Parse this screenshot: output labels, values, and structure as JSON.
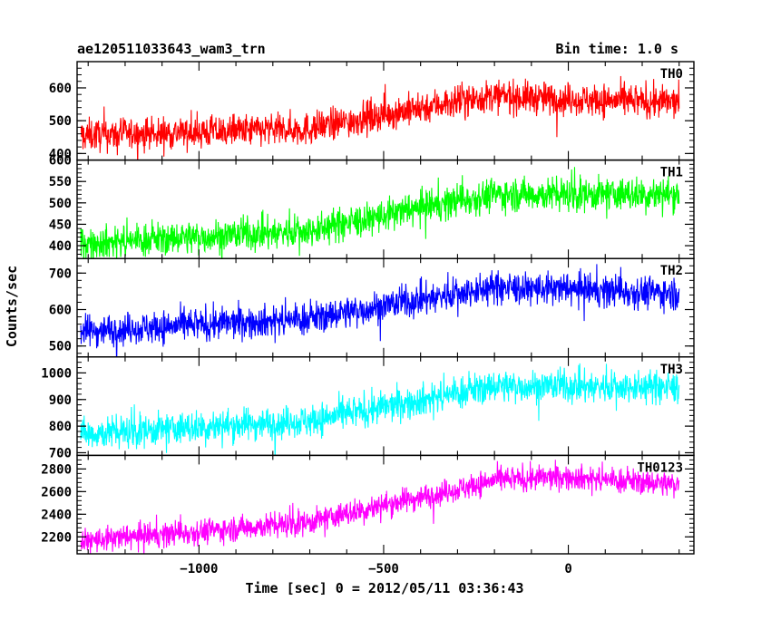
{
  "header": {
    "title": "ae120511033643_wam3_trn",
    "bin_time": "Bin time: 1.0 s"
  },
  "chart_data": {
    "type": "line",
    "xlabel": "Time [sec] 0 = 2012/05/11 03:36:43",
    "ylabel": "Counts/sec",
    "xlim": [
      -1330,
      340
    ],
    "x_ticks": [
      -1000,
      -500,
      0
    ],
    "x_tick_labels": [
      "−1000",
      "−500",
      "0"
    ],
    "x_range_of_data": [
      -1320,
      300
    ],
    "panels": [
      {
        "name": "TH0",
        "color": "#ff0000",
        "ylim": [
          380,
          680
        ],
        "y_ticks": [
          400,
          500,
          600
        ],
        "trend": [
          [
            -1320,
            455
          ],
          [
            -700,
            475
          ],
          [
            -500,
            520
          ],
          [
            -300,
            560
          ],
          [
            -200,
            575
          ],
          [
            0,
            565
          ],
          [
            300,
            555
          ]
        ],
        "noise": 45
      },
      {
        "name": "TH1",
        "color": "#00ff00",
        "ylim": [
          370,
          600
        ],
        "y_ticks": [
          400,
          450,
          500,
          550,
          600
        ],
        "trend": [
          [
            -1320,
            405
          ],
          [
            -700,
            435
          ],
          [
            -500,
            470
          ],
          [
            -300,
            505
          ],
          [
            -200,
            520
          ],
          [
            0,
            520
          ],
          [
            300,
            520
          ]
        ],
        "noise": 35
      },
      {
        "name": "TH2",
        "color": "#0000ff",
        "ylim": [
          470,
          740
        ],
        "y_ticks": [
          500,
          600,
          700
        ],
        "trend": [
          [
            -1320,
            540
          ],
          [
            -700,
            575
          ],
          [
            -500,
            610
          ],
          [
            -300,
            645
          ],
          [
            -200,
            660
          ],
          [
            0,
            655
          ],
          [
            300,
            645
          ]
        ],
        "noise": 40
      },
      {
        "name": "TH3",
        "color": "#00ffff",
        "ylim": [
          690,
          1060
        ],
        "y_ticks": [
          700,
          800,
          900,
          1000
        ],
        "trend": [
          [
            -1320,
            770
          ],
          [
            -700,
            820
          ],
          [
            -500,
            870
          ],
          [
            -300,
            925
          ],
          [
            -200,
            950
          ],
          [
            0,
            950
          ],
          [
            300,
            945
          ]
        ],
        "noise": 55
      },
      {
        "name": "TH0123",
        "color": "#ff00ff",
        "ylim": [
          2050,
          2920
        ],
        "y_ticks": [
          2200,
          2400,
          2600,
          2800
        ],
        "trend": [
          [
            -1320,
            2160
          ],
          [
            -700,
            2330
          ],
          [
            -500,
            2480
          ],
          [
            -300,
            2620
          ],
          [
            -200,
            2700
          ],
          [
            0,
            2730
          ],
          [
            300,
            2660
          ]
        ],
        "noise": 100
      }
    ]
  }
}
